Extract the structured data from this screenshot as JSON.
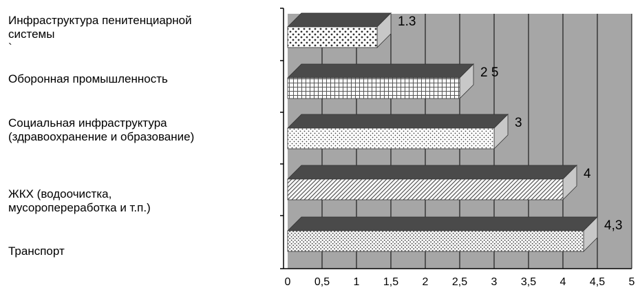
{
  "chart_data": {
    "type": "bar",
    "orientation": "horizontal",
    "categories": [
      "Инфраструктура пенитенциарной системы\n`",
      "Оборонная промышленность",
      "Социальная инфраструктура (здравоохранение и образование)",
      "ЖКХ (водоочистка, мусоропереработка и т.п.)",
      "Транспорт"
    ],
    "category_lines": [
      [
        "Инфраструктура пенитенциарной",
        "системы",
        "`"
      ],
      [
        "Оборонная промышленность"
      ],
      [
        "Социальная инфраструктура",
        "(здравоохранение и образование)"
      ],
      [
        "ЖКХ (водоочистка,",
        "мусоропереработка и т.п.)"
      ],
      [
        "Транспорт"
      ]
    ],
    "values": [
      1.3,
      2.5,
      3,
      4,
      4.3
    ],
    "data_labels": [
      "1.3",
      "2 5",
      "3",
      "4",
      "4,3"
    ],
    "xlim": [
      0,
      5
    ],
    "xticks": [
      "0",
      "0,5",
      "1",
      "1,5",
      "2",
      "2,5",
      "3",
      "3,5",
      "4",
      "4,5",
      "5"
    ],
    "grid": true,
    "three_d": true,
    "colors": {
      "plot_background": "#a6a6a6",
      "bar_top": "#4a4a4a",
      "bar_side": "#c8c8c8",
      "grid": "#000000"
    },
    "patterns": [
      "dots-coarse",
      "grid",
      "dots-fine",
      "diagonal",
      "dots-dense"
    ]
  }
}
